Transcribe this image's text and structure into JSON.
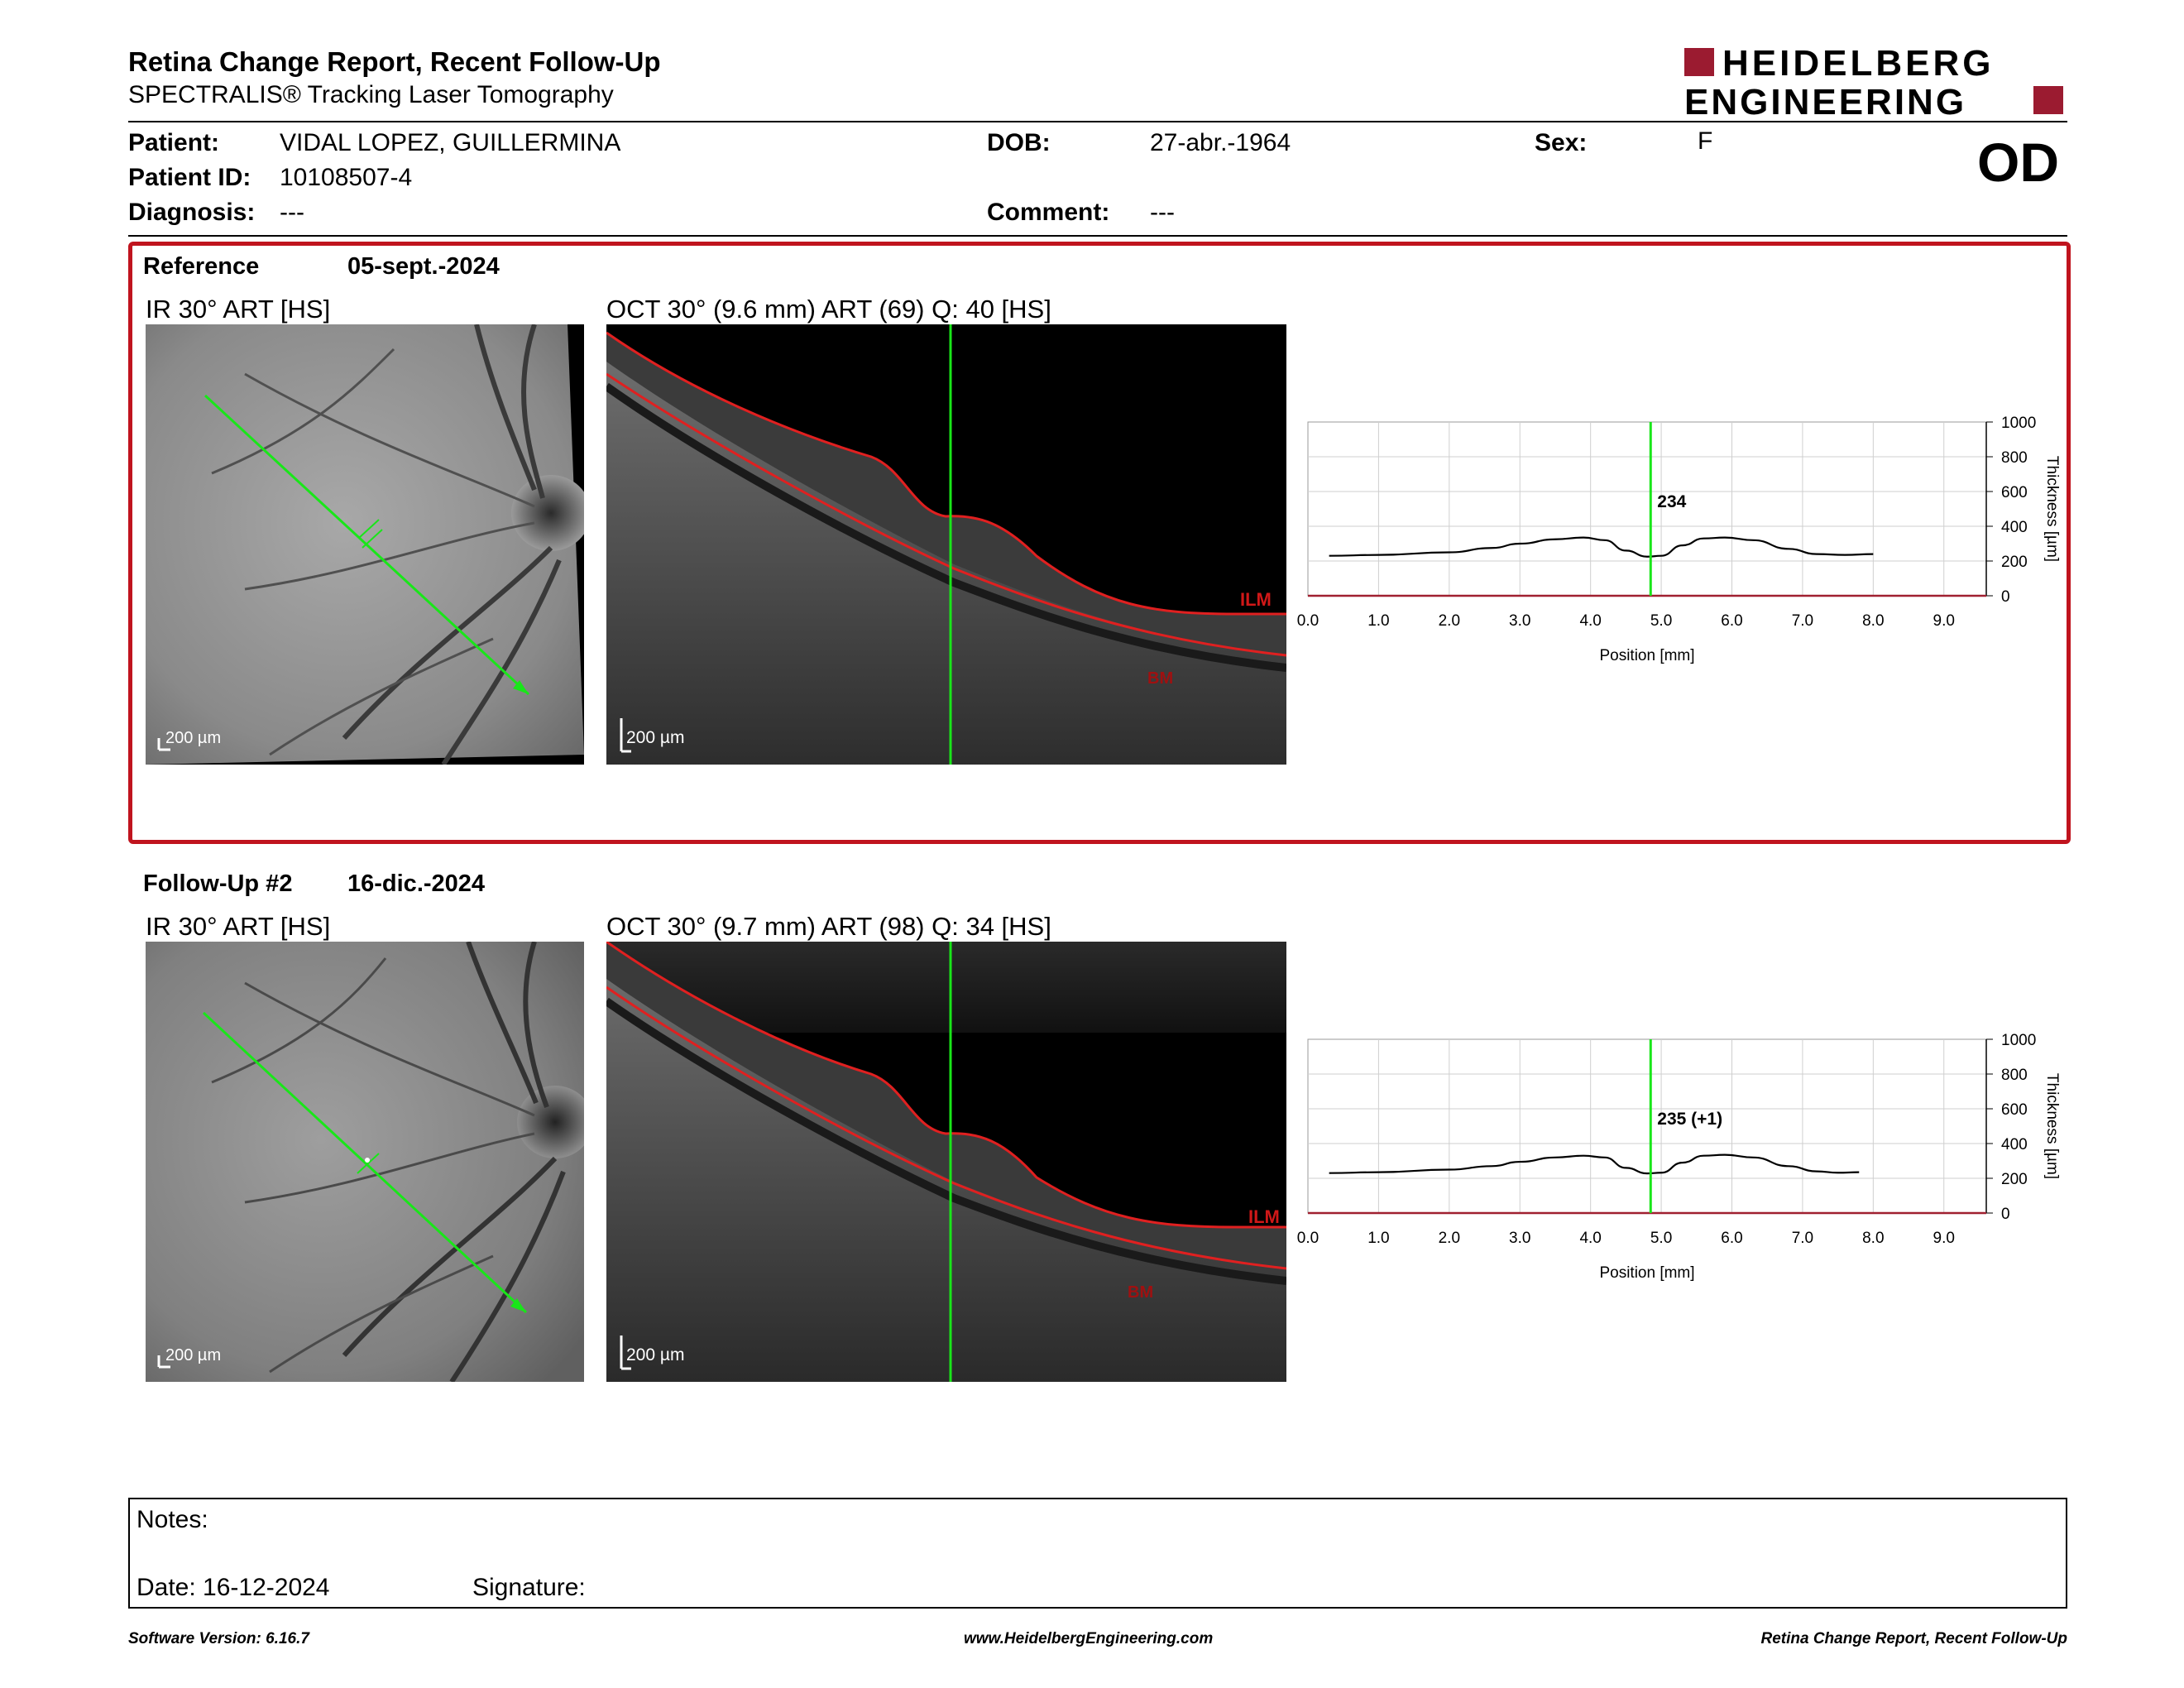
{
  "header": {
    "title": "Retina Change Report, Recent Follow-Up",
    "subtitle": "SPECTRALIS® Tracking Laser Tomography",
    "logo_line1": "HEIDELBERG",
    "logo_line2": "ENGINEERING",
    "eye": "OD"
  },
  "patient": {
    "name_label": "Patient:",
    "name": "VIDAL LOPEZ, GUILLERMINA",
    "id_label": "Patient ID:",
    "id": "10108507-4",
    "diagnosis_label": "Diagnosis:",
    "diagnosis": "---",
    "dob_label": "DOB:",
    "dob": "27-abr.-1964",
    "comment_label": "Comment:",
    "comment": "---",
    "sex_label": "Sex:",
    "sex": "F"
  },
  "reference": {
    "label": "Reference",
    "date": "05-sept.-2024",
    "ir_title": "IR 30° ART [HS]",
    "oct_title": "OCT 30° (9.6 mm) ART (69) Q: 40 [HS]",
    "scale_ir": "200 µm",
    "scale_oct": "200 µm",
    "ilm": "ILM",
    "bm": "BM"
  },
  "followup": {
    "label": "Follow-Up #2",
    "date": "16-dic.-2024",
    "ir_title": "IR 30° ART [HS]",
    "oct_title": "OCT 30° (9.7 mm) ART (98) Q: 34 [HS]",
    "scale_ir": "200 µm",
    "scale_oct": "200 µm",
    "ilm": "ILM",
    "bm": "BM"
  },
  "chart_data": [
    {
      "type": "line",
      "xlabel": "Position [mm]",
      "ylabel": "Thickness [µm]",
      "xlim": [
        0,
        9.6
      ],
      "ylim": [
        0,
        1000
      ],
      "x_ticks": [
        "0.0",
        "1.0",
        "2.0",
        "3.0",
        "4.0",
        "5.0",
        "6.0",
        "7.0",
        "8.0",
        "9.0"
      ],
      "y_ticks": [
        "0",
        "200",
        "400",
        "600",
        "800",
        "1000"
      ],
      "grid": true,
      "marker_x": 4.85,
      "marker_label": "234",
      "series": [
        {
          "x": [
            0.3,
            1.0,
            2.0,
            2.6,
            3.0,
            3.5,
            3.9,
            4.2,
            4.5,
            4.8,
            5.0,
            5.3,
            5.6,
            5.9,
            6.3,
            6.8,
            7.2,
            7.6,
            8.0
          ],
          "y": [
            230,
            235,
            250,
            275,
            300,
            325,
            335,
            320,
            260,
            225,
            230,
            290,
            330,
            335,
            320,
            270,
            240,
            235,
            240
          ]
        }
      ]
    },
    {
      "type": "line",
      "xlabel": "Position [mm]",
      "ylabel": "Thickness [µm]",
      "xlim": [
        0,
        9.6
      ],
      "ylim": [
        0,
        1000
      ],
      "x_ticks": [
        "0.0",
        "1.0",
        "2.0",
        "3.0",
        "4.0",
        "5.0",
        "6.0",
        "7.0",
        "8.0",
        "9.0"
      ],
      "y_ticks": [
        "0",
        "200",
        "400",
        "600",
        "800",
        "1000"
      ],
      "grid": true,
      "marker_x": 4.85,
      "marker_label": "235 (+1)",
      "series": [
        {
          "x": [
            0.3,
            1.0,
            2.0,
            2.6,
            3.0,
            3.5,
            3.9,
            4.2,
            4.5,
            4.8,
            5.0,
            5.3,
            5.6,
            5.9,
            6.3,
            6.8,
            7.2,
            7.5,
            7.8
          ],
          "y": [
            230,
            235,
            250,
            270,
            295,
            320,
            330,
            320,
            260,
            228,
            232,
            290,
            330,
            335,
            320,
            270,
            240,
            232,
            235
          ]
        }
      ]
    }
  ],
  "notes": {
    "notes_label": "Notes:",
    "date_label": "Date: 16-12-2024",
    "signature_label": "Signature:"
  },
  "footer": {
    "software": "Software Version: 6.16.7",
    "website": "www.HeidelbergEngineering.com",
    "report": "Retina Change Report, Recent Follow-Up"
  },
  "colors": {
    "frame_red": "#c0141e",
    "scan_green": "#19e619",
    "logo_red": "#9b1b30"
  }
}
